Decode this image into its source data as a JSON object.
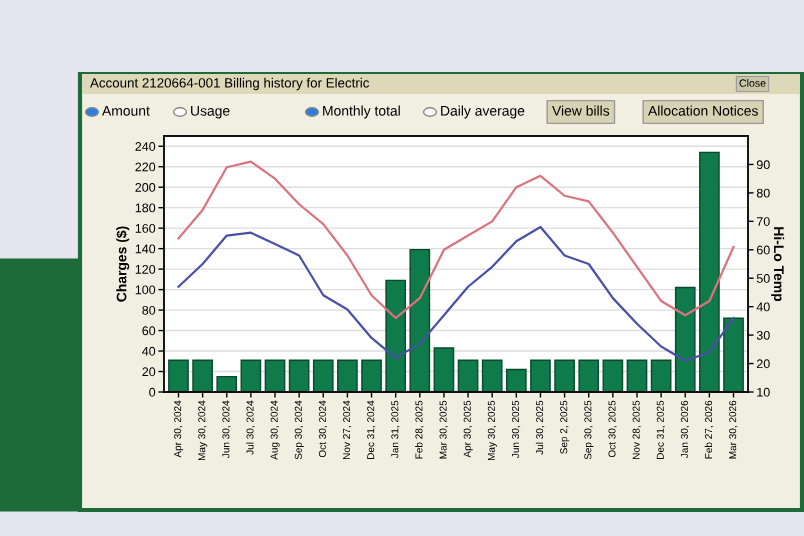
{
  "chart_data": {
    "type": "bar",
    "title": "Account 2120664-001 Billing history for Electric",
    "categories": [
      "Apr 30, 2024",
      "May 30, 2024",
      "Jun 30, 2024",
      "Jul 30, 2024",
      "Aug 30, 2024",
      "Sep 30, 2024",
      "Oct 30, 2024",
      "Nov 27, 2024",
      "Dec 31, 2024",
      "Jan 31, 2025",
      "Feb 28, 2025",
      "Mar 30, 2025",
      "Apr 30, 2025",
      "May 30, 2025",
      "Jun 30, 2025",
      "Jul 30, 2025",
      "Sep 2, 2025",
      "Sep 30, 2025",
      "Oct 30, 2025",
      "Nov 28, 2025",
      "Dec 31, 2025",
      "Jan 30, 2026",
      "Feb 27, 2026",
      "Mar 30, 2026"
    ],
    "series": [
      {
        "color": "#0f7a4a",
        "values": [
          31,
          31,
          15,
          31,
          31,
          31,
          31,
          31,
          31,
          109,
          139,
          43,
          31,
          31,
          22,
          31,
          31,
          31,
          31,
          31,
          31,
          102,
          234,
          72
        ]
      },
      {
        "type": "line",
        "axis": "y2",
        "color": "#d9737f",
        "values": [
          64,
          74,
          89,
          91,
          85,
          76,
          69,
          58,
          44,
          36,
          43,
          60,
          65,
          70,
          82,
          86,
          79,
          77,
          66,
          54,
          42,
          37,
          42,
          61
        ]
      },
      {
        "type": "line",
        "axis": "y2",
        "color": "#4a4fa8",
        "values": [
          47,
          55,
          65,
          66,
          62,
          58,
          44,
          39,
          29,
          22,
          27,
          37,
          47,
          54,
          63,
          68,
          58,
          55,
          43,
          34,
          26,
          21,
          24,
          36
        ]
      }
    ],
    "ylabel": "Charges ($)",
    "y2label": "Hi-Lo Temp",
    "ylim": [
      0,
      250
    ],
    "yticks": [
      0,
      20,
      40,
      60,
      80,
      100,
      120,
      140,
      160,
      180,
      200,
      220,
      240
    ],
    "y2lim": [
      10,
      100
    ],
    "y2ticks": [
      10,
      20,
      30,
      40,
      50,
      60,
      70,
      80,
      90
    ],
    "grid": "y",
    "legend": false,
    "annotations": [
      "Amount",
      "Usage",
      "Monthly total",
      "Daily average",
      "View bills",
      "Allocation Notices",
      "Close"
    ]
  }
}
